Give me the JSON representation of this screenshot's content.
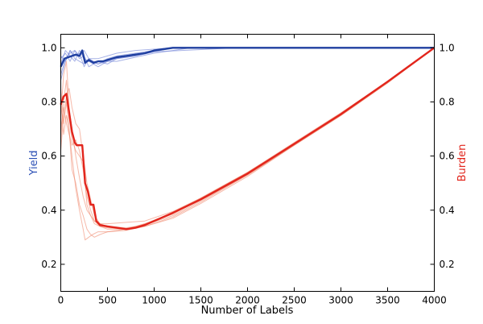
{
  "chart_data": {
    "type": "line",
    "title": "",
    "xlabel": "Number of Labels",
    "ylabel_left": "Yield",
    "ylabel_right": "Burden",
    "xlim": [
      0,
      4000
    ],
    "ylim": [
      0.1,
      1.05
    ],
    "x_ticks": [
      "0",
      "500",
      "1000",
      "1500",
      "2000",
      "2500",
      "3000",
      "3500",
      "4000"
    ],
    "y_ticks_left": [
      "0.2",
      "0.4",
      "0.6",
      "0.8",
      "1.0"
    ],
    "y_ticks_right": [
      "0.2",
      "0.4",
      "0.6",
      "0.8",
      "1.0"
    ],
    "grid": false,
    "colors": {
      "yield_mean": "#1f3fa0",
      "yield_trial": "#6d7fd6",
      "burden_mean": "#e2251c",
      "burden_trial": "#f08a70"
    },
    "series": [
      {
        "axis": "left",
        "role": "mean",
        "color_key": "yield_mean",
        "x": [
          0,
          40,
          80,
          120,
          160,
          200,
          230,
          260,
          300,
          350,
          400,
          450,
          500,
          600,
          700,
          800,
          900,
          1000,
          1100,
          1200,
          1500,
          2000,
          2500,
          3000,
          3500,
          4000
        ],
        "y": [
          0.93,
          0.96,
          0.965,
          0.97,
          0.975,
          0.97,
          0.99,
          0.945,
          0.955,
          0.945,
          0.95,
          0.95,
          0.955,
          0.965,
          0.97,
          0.975,
          0.98,
          0.99,
          0.995,
          1.0,
          1.0,
          1.0,
          1.0,
          1.0,
          1.0,
          1.0
        ]
      },
      {
        "axis": "left",
        "role": "trial",
        "color_key": "yield_trial",
        "x": [
          0,
          50,
          100,
          150,
          200,
          250,
          300,
          400,
          500,
          600,
          800,
          1000,
          1200,
          4000
        ],
        "y": [
          0.88,
          0.95,
          0.99,
          0.97,
          0.98,
          0.93,
          0.96,
          0.94,
          0.96,
          0.97,
          0.98,
          0.99,
          1.0,
          1.0
        ]
      },
      {
        "axis": "left",
        "role": "trial",
        "color_key": "yield_trial",
        "x": [
          0,
          50,
          100,
          150,
          200,
          250,
          300,
          400,
          500,
          600,
          800,
          1000,
          1200,
          4000
        ],
        "y": [
          0.96,
          0.98,
          0.95,
          0.99,
          0.96,
          0.97,
          0.93,
          0.95,
          0.94,
          0.96,
          0.97,
          0.985,
          1.0,
          1.0
        ]
      },
      {
        "axis": "left",
        "role": "trial",
        "color_key": "yield_trial",
        "x": [
          0,
          50,
          100,
          150,
          200,
          250,
          300,
          400,
          500,
          600,
          800,
          1000,
          1400,
          4000
        ],
        "y": [
          0.94,
          0.99,
          0.97,
          0.95,
          0.99,
          0.96,
          0.95,
          0.93,
          0.95,
          0.95,
          0.965,
          0.98,
          1.0,
          1.0
        ]
      },
      {
        "axis": "left",
        "role": "trial",
        "color_key": "yield_trial",
        "x": [
          0,
          50,
          100,
          150,
          200,
          250,
          300,
          400,
          500,
          600,
          800,
          1000,
          1200,
          4000
        ],
        "y": [
          0.9,
          0.96,
          0.98,
          0.99,
          0.97,
          0.99,
          0.96,
          0.96,
          0.97,
          0.98,
          0.99,
          0.995,
          1.0,
          1.0
        ]
      },
      {
        "axis": "left",
        "role": "trial",
        "color_key": "yield_trial",
        "x": [
          0,
          50,
          100,
          150,
          200,
          250,
          300,
          400,
          500,
          600,
          800,
          1000,
          1900,
          4000
        ],
        "y": [
          0.97,
          0.95,
          0.99,
          0.96,
          0.95,
          0.94,
          0.95,
          0.94,
          0.95,
          0.96,
          0.97,
          0.985,
          1.0,
          1.0
        ]
      },
      {
        "axis": "right",
        "role": "mean",
        "color_key": "burden_mean",
        "x": [
          0,
          30,
          60,
          90,
          120,
          150,
          170,
          200,
          230,
          260,
          290,
          320,
          350,
          380,
          420,
          500,
          600,
          700,
          800,
          900,
          1000,
          1200,
          1500,
          2000,
          2500,
          3000,
          3500,
          4000
        ],
        "y": [
          0.79,
          0.82,
          0.83,
          0.76,
          0.69,
          0.65,
          0.64,
          0.64,
          0.64,
          0.5,
          0.47,
          0.42,
          0.42,
          0.36,
          0.345,
          0.34,
          0.335,
          0.33,
          0.335,
          0.345,
          0.36,
          0.39,
          0.44,
          0.535,
          0.645,
          0.755,
          0.875,
          1.0
        ]
      },
      {
        "axis": "right",
        "role": "trial",
        "color_key": "burden_trial",
        "x": [
          0,
          30,
          60,
          90,
          120,
          160,
          200,
          240,
          280,
          320,
          360,
          420,
          500,
          700,
          900,
          1200,
          1500,
          2000,
          2500,
          3000,
          3500,
          4000
        ],
        "y": [
          0.75,
          0.9,
          0.95,
          0.78,
          0.7,
          0.6,
          0.52,
          0.45,
          0.4,
          0.38,
          0.35,
          0.34,
          0.33,
          0.33,
          0.35,
          0.385,
          0.44,
          0.535,
          0.645,
          0.755,
          0.875,
          1.0
        ]
      },
      {
        "axis": "right",
        "role": "trial",
        "color_key": "burden_trial",
        "x": [
          0,
          30,
          60,
          90,
          120,
          160,
          200,
          240,
          260,
          300,
          340,
          400,
          500,
          700,
          900,
          1200,
          1500,
          2000,
          2500,
          3000,
          3500,
          4000
        ],
        "y": [
          0.85,
          0.72,
          0.8,
          0.69,
          0.6,
          0.48,
          0.4,
          0.33,
          0.29,
          0.3,
          0.31,
          0.32,
          0.32,
          0.325,
          0.34,
          0.375,
          0.43,
          0.53,
          0.64,
          0.75,
          0.87,
          1.0
        ]
      },
      {
        "axis": "right",
        "role": "trial",
        "color_key": "burden_trial",
        "x": [
          0,
          30,
          60,
          90,
          120,
          160,
          200,
          240,
          280,
          320,
          360,
          420,
          500,
          700,
          900,
          1200,
          1500,
          2000,
          2500,
          3000,
          3500,
          4000
        ],
        "y": [
          0.62,
          0.75,
          0.82,
          0.85,
          0.78,
          0.72,
          0.7,
          0.6,
          0.5,
          0.44,
          0.38,
          0.35,
          0.34,
          0.335,
          0.345,
          0.38,
          0.435,
          0.53,
          0.64,
          0.75,
          0.87,
          1.0
        ]
      },
      {
        "axis": "right",
        "role": "trial",
        "color_key": "burden_trial",
        "x": [
          0,
          30,
          60,
          90,
          120,
          160,
          200,
          240,
          280,
          320,
          360,
          420,
          500,
          700,
          900,
          1200,
          1500,
          2000,
          2500,
          3000,
          3500,
          4000
        ],
        "y": [
          0.7,
          0.78,
          0.72,
          0.68,
          0.64,
          0.66,
          0.62,
          0.55,
          0.45,
          0.4,
          0.36,
          0.34,
          0.335,
          0.33,
          0.34,
          0.37,
          0.425,
          0.525,
          0.64,
          0.75,
          0.87,
          1.0
        ]
      },
      {
        "axis": "right",
        "role": "trial",
        "color_key": "burden_trial",
        "x": [
          0,
          30,
          60,
          90,
          120,
          160,
          200,
          240,
          280,
          320,
          360,
          420,
          500,
          700,
          900,
          1200,
          1500,
          2000,
          2500,
          3000,
          3500,
          4000
        ],
        "y": [
          0.8,
          0.68,
          0.75,
          0.7,
          0.55,
          0.5,
          0.42,
          0.38,
          0.33,
          0.31,
          0.3,
          0.31,
          0.32,
          0.33,
          0.35,
          0.39,
          0.445,
          0.54,
          0.65,
          0.76,
          0.875,
          1.0
        ]
      },
      {
        "axis": "right",
        "role": "trial",
        "color_key": "burden_trial",
        "x": [
          0,
          30,
          60,
          90,
          120,
          160,
          200,
          240,
          280,
          320,
          360,
          420,
          500,
          700,
          900,
          1200,
          1500,
          2000,
          2500,
          3000,
          3500,
          4000
        ],
        "y": [
          0.66,
          0.8,
          0.88,
          0.74,
          0.66,
          0.62,
          0.6,
          0.58,
          0.42,
          0.38,
          0.36,
          0.35,
          0.35,
          0.355,
          0.36,
          0.395,
          0.445,
          0.54,
          0.645,
          0.755,
          0.875,
          1.0
        ]
      }
    ]
  }
}
